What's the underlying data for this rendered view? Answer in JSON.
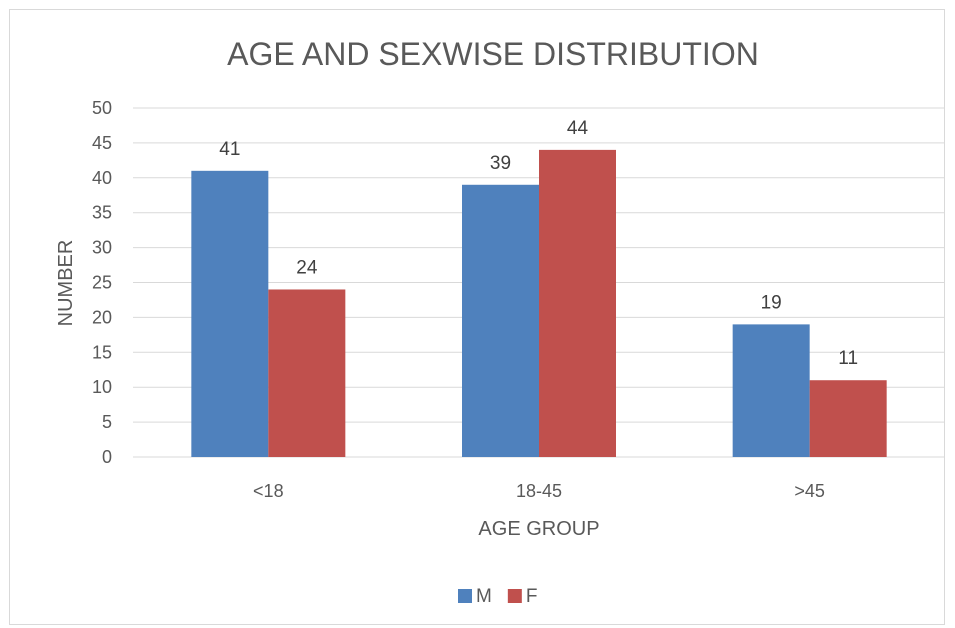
{
  "chart_data": {
    "type": "bar",
    "title": "AGE AND SEXWISE DISTRIBUTION",
    "xlabel": "AGE GROUP",
    "ylabel": "NUMBER",
    "categories": [
      "<18",
      "18-45",
      ">45"
    ],
    "series": [
      {
        "name": "M",
        "values": [
          41,
          39,
          19
        ],
        "color": "#4f81bd"
      },
      {
        "name": "F",
        "values": [
          24,
          44,
          11
        ],
        "color": "#c0504d"
      }
    ],
    "ylim": [
      0,
      50
    ],
    "yticks": [
      0,
      5,
      10,
      15,
      20,
      25,
      30,
      35,
      40,
      45,
      50
    ],
    "grid": true,
    "legend_position": "bottom",
    "gridline_color": "#d9d9d9",
    "axis_text_color": "#595959"
  }
}
